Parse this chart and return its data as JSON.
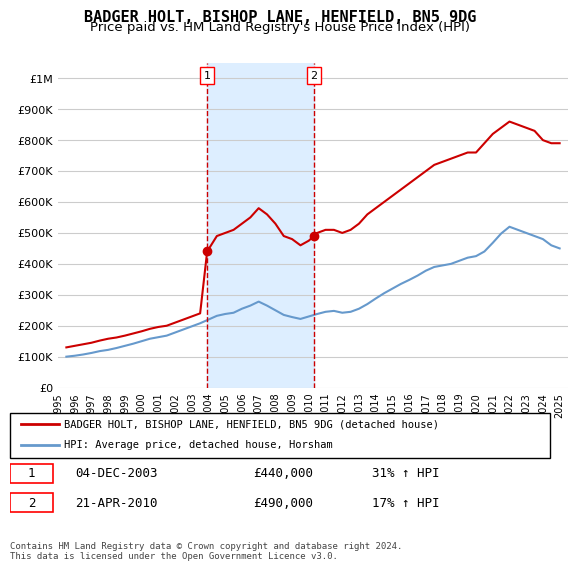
{
  "title": "BADGER HOLT, BISHOP LANE, HENFIELD, BN5 9DG",
  "subtitle": "Price paid vs. HM Land Registry's House Price Index (HPI)",
  "title_fontsize": 11,
  "subtitle_fontsize": 9.5,
  "ylim": [
    0,
    1050000
  ],
  "yticks": [
    0,
    100000,
    200000,
    300000,
    400000,
    500000,
    600000,
    700000,
    800000,
    900000,
    1000000
  ],
  "ytick_labels": [
    "£0",
    "£100K",
    "£200K",
    "£300K",
    "£400K",
    "£500K",
    "£600K",
    "£700K",
    "£800K",
    "£900K",
    "£1M"
  ],
  "xlim_start": 1995.0,
  "xlim_end": 2025.5,
  "xtick_years": [
    1995,
    1996,
    1997,
    1998,
    1999,
    2000,
    2001,
    2002,
    2003,
    2004,
    2005,
    2006,
    2007,
    2008,
    2009,
    2010,
    2011,
    2012,
    2013,
    2014,
    2015,
    2016,
    2017,
    2018,
    2019,
    2020,
    2021,
    2022,
    2023,
    2024,
    2025
  ],
  "sale1_x": 2003.92,
  "sale1_y": 440000,
  "sale1_label": "1",
  "sale1_date": "04-DEC-2003",
  "sale1_price": "£440,000",
  "sale1_hpi": "31% ↑ HPI",
  "sale2_x": 2010.3,
  "sale2_y": 490000,
  "sale2_label": "2",
  "sale2_date": "21-APR-2010",
  "sale2_price": "£490,000",
  "sale2_hpi": "17% ↑ HPI",
  "red_line_color": "#cc0000",
  "blue_line_color": "#6699cc",
  "shade_color": "#ddeeff",
  "grid_color": "#cccccc",
  "legend_label_red": "BADGER HOLT, BISHOP LANE, HENFIELD, BN5 9DG (detached house)",
  "legend_label_blue": "HPI: Average price, detached house, Horsham",
  "footnote": "Contains HM Land Registry data © Crown copyright and database right 2024.\nThis data is licensed under the Open Government Licence v3.0.",
  "red_x": [
    1995.5,
    1996.0,
    1996.5,
    1997.0,
    1997.5,
    1998.0,
    1998.5,
    1999.0,
    1999.5,
    2000.0,
    2000.5,
    2001.0,
    2001.5,
    2002.0,
    2002.5,
    2003.0,
    2003.5,
    2003.92,
    2004.5,
    2005.0,
    2005.5,
    2006.0,
    2006.5,
    2007.0,
    2007.5,
    2008.0,
    2008.5,
    2009.0,
    2009.5,
    2010.0,
    2010.3,
    2010.5,
    2011.0,
    2011.5,
    2012.0,
    2012.5,
    2013.0,
    2013.5,
    2014.0,
    2014.5,
    2015.0,
    2015.5,
    2016.0,
    2016.5,
    2017.0,
    2017.5,
    2018.0,
    2018.5,
    2019.0,
    2019.5,
    2020.0,
    2020.5,
    2021.0,
    2021.5,
    2022.0,
    2022.5,
    2023.0,
    2023.5,
    2024.0,
    2024.5,
    2025.0
  ],
  "red_y": [
    130000,
    135000,
    140000,
    145000,
    152000,
    158000,
    162000,
    168000,
    175000,
    182000,
    190000,
    196000,
    200000,
    210000,
    220000,
    230000,
    240000,
    440000,
    490000,
    500000,
    510000,
    530000,
    550000,
    580000,
    560000,
    530000,
    490000,
    480000,
    460000,
    475000,
    490000,
    500000,
    510000,
    510000,
    500000,
    510000,
    530000,
    560000,
    580000,
    600000,
    620000,
    640000,
    660000,
    680000,
    700000,
    720000,
    730000,
    740000,
    750000,
    760000,
    760000,
    790000,
    820000,
    840000,
    860000,
    850000,
    840000,
    830000,
    800000,
    790000,
    790000
  ],
  "blue_x": [
    1995.5,
    1996.0,
    1996.5,
    1997.0,
    1997.5,
    1998.0,
    1998.5,
    1999.0,
    1999.5,
    2000.0,
    2000.5,
    2001.0,
    2001.5,
    2002.0,
    2002.5,
    2003.0,
    2003.5,
    2004.0,
    2004.5,
    2005.0,
    2005.5,
    2006.0,
    2006.5,
    2007.0,
    2007.5,
    2008.0,
    2008.5,
    2009.0,
    2009.5,
    2010.0,
    2010.5,
    2011.0,
    2011.5,
    2012.0,
    2012.5,
    2013.0,
    2013.5,
    2014.0,
    2014.5,
    2015.0,
    2015.5,
    2016.0,
    2016.5,
    2017.0,
    2017.5,
    2018.0,
    2018.5,
    2019.0,
    2019.5,
    2020.0,
    2020.5,
    2021.0,
    2021.5,
    2022.0,
    2022.5,
    2023.0,
    2023.5,
    2024.0,
    2024.5,
    2025.0
  ],
  "blue_y": [
    100000,
    103000,
    107000,
    112000,
    118000,
    122000,
    128000,
    135000,
    142000,
    150000,
    158000,
    163000,
    168000,
    178000,
    188000,
    198000,
    208000,
    220000,
    232000,
    238000,
    242000,
    255000,
    265000,
    278000,
    265000,
    250000,
    235000,
    228000,
    222000,
    230000,
    238000,
    245000,
    248000,
    242000,
    245000,
    255000,
    270000,
    288000,
    305000,
    320000,
    335000,
    348000,
    362000,
    378000,
    390000,
    395000,
    400000,
    410000,
    420000,
    425000,
    440000,
    468000,
    498000,
    520000,
    510000,
    500000,
    490000,
    480000,
    460000,
    450000
  ]
}
